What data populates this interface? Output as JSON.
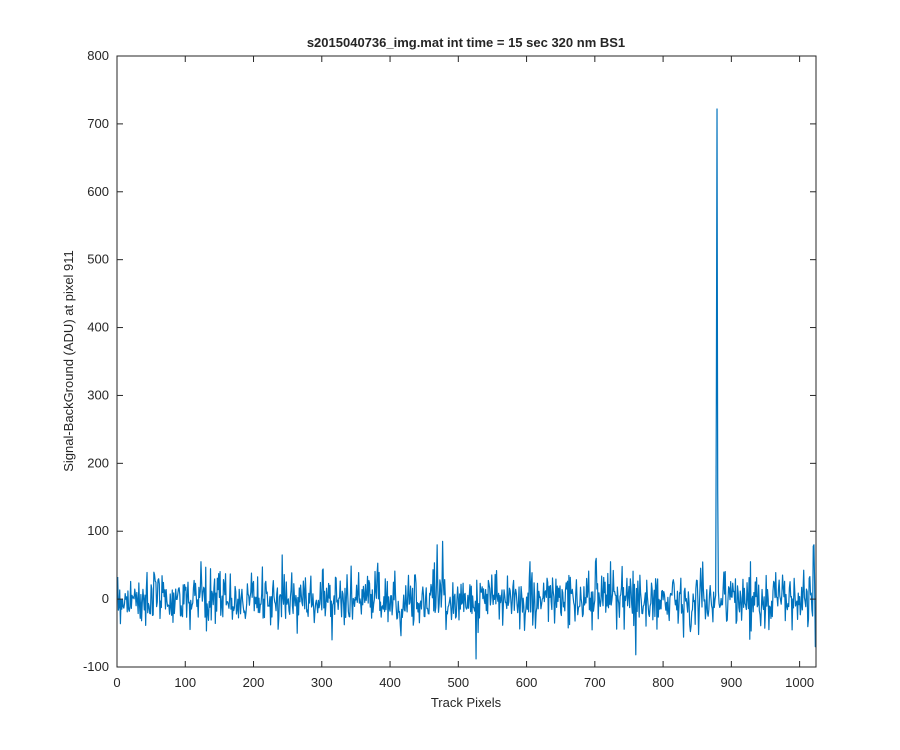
{
  "chart_data": {
    "type": "line",
    "title": "s2015040736_img.mat int time = 15 sec  320 nm BS1",
    "xlabel": "Track Pixels",
    "ylabel": "Signal-BackGround (ADU) at pixel 911",
    "xlim": [
      0,
      1024
    ],
    "ylim": [
      -100,
      800
    ],
    "xticks": [
      0,
      100,
      200,
      300,
      400,
      500,
      600,
      700,
      800,
      900,
      1000
    ],
    "yticks": [
      -100,
      0,
      100,
      200,
      300,
      400,
      500,
      600,
      700,
      800
    ],
    "grid": false,
    "series_color": "#0072BD",
    "series": [
      {
        "x_start": 1,
        "x_step": 1,
        "noise_amplitude_std": 20,
        "peaks": [
          {
            "x": 878,
            "y": 290
          },
          {
            "x": 879,
            "y": 722
          },
          {
            "x": 880,
            "y": 160
          },
          {
            "x": 477,
            "y": 85
          },
          {
            "x": 469,
            "y": 80
          },
          {
            "x": 242,
            "y": 65
          },
          {
            "x": 702,
            "y": 60
          },
          {
            "x": 1020,
            "y": 78
          },
          {
            "x": 1021,
            "y": 80
          },
          {
            "x": 526,
            "y": -88
          },
          {
            "x": 760,
            "y": -82
          },
          {
            "x": 1023,
            "y": -70
          }
        ]
      }
    ]
  }
}
